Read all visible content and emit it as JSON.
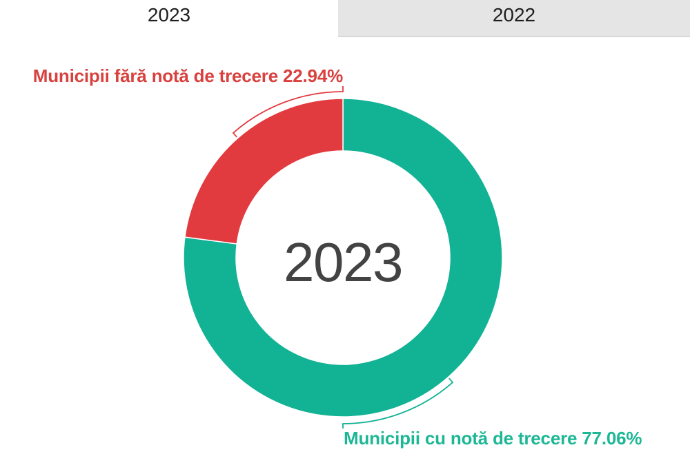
{
  "tabs": [
    {
      "label": "2023",
      "active": true
    },
    {
      "label": "2022",
      "active": false
    }
  ],
  "tab_style": {
    "inactive_bg": "#e5e5e5",
    "text_color": "#1f1f1f"
  },
  "chart_data": {
    "type": "pie",
    "donut": true,
    "center_label": "2023",
    "center_label_color": "#434343",
    "start_angle": 0,
    "inner_radius_ratio": 0.67,
    "slices": [
      {
        "label": "Municipii cu notă de trecere",
        "value": 77.06,
        "display": "77.06%",
        "color": "#12b294",
        "label_color": "#1db795",
        "leader_to": "bottom"
      },
      {
        "label": "Municipii fără notă de trecere",
        "value": 22.94,
        "display": "22.94%",
        "color": "#e23b3f",
        "label_color": "#d8413e",
        "leader_to": "top"
      }
    ]
  }
}
